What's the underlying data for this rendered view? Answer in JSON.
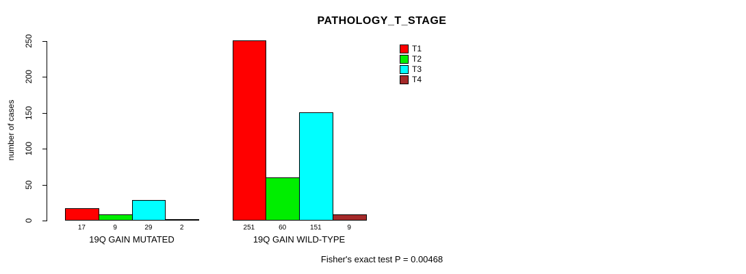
{
  "title": "PATHOLOGY_T_STAGE",
  "chart_data": {
    "type": "bar",
    "title": "PATHOLOGY_T_STAGE",
    "xlabel": "",
    "ylabel": "number of cases",
    "ylim": [
      0,
      250
    ],
    "yticks": [
      0,
      50,
      100,
      150,
      200,
      250
    ],
    "grid": false,
    "legend_position": "top-right",
    "bar_value_labels": true,
    "groups": [
      "19Q GAIN MUTATED",
      "19Q GAIN WILD-TYPE"
    ],
    "series": [
      {
        "name": "T1",
        "color": "#ff0000",
        "values": [
          17,
          251
        ]
      },
      {
        "name": "T2",
        "color": "#00ee00",
        "values": [
          9,
          60
        ]
      },
      {
        "name": "T3",
        "color": "#00ffff",
        "values": [
          29,
          151
        ]
      },
      {
        "name": "T4",
        "color": "#a52a2a",
        "values": [
          2,
          9
        ]
      }
    ],
    "annotation": "Fisher's exact test P = 0.00468"
  },
  "colors": {
    "axis": "#000000",
    "background": "#ffffff"
  }
}
